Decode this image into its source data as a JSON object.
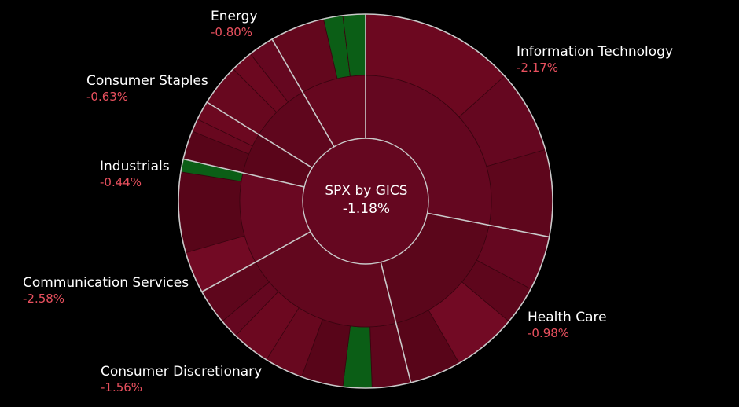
{
  "chart_data": {
    "type": "sunburst",
    "title": "SPX by GICS",
    "total_change": "-1.18%",
    "colors": {
      "background": "#000000",
      "label_text": "#ffffff",
      "negative_text": "#e8505e",
      "positive_fill": "#0b5e16",
      "divider": "#c9c9c9"
    },
    "sectors": [
      {
        "name": "Information Technology",
        "change": "-2.17%",
        "value": -2.17
      },
      {
        "name": "Health Care",
        "change": "-0.98%",
        "value": -0.98
      },
      {
        "name": "Consumer Discretionary",
        "change": "-1.56%",
        "value": -1.56
      },
      {
        "name": "Communication Services",
        "change": "-2.58%",
        "value": -2.58
      },
      {
        "name": "Industrials",
        "change": "-0.44%",
        "value": -0.44
      },
      {
        "name": "Consumer Staples",
        "change": "-0.63%",
        "value": -0.63
      },
      {
        "name": "Energy",
        "change": "-0.80%",
        "value": -0.8
      }
    ]
  }
}
